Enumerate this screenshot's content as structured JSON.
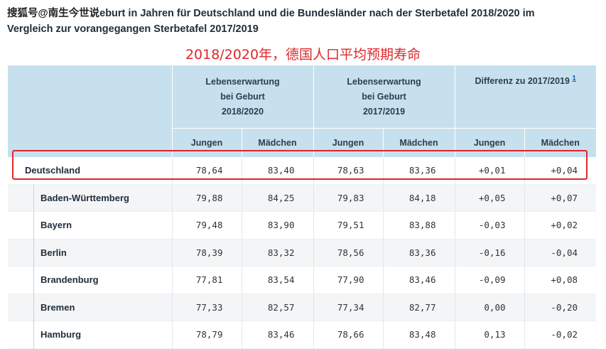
{
  "title": {
    "watermark": "搜狐号@南生今世说",
    "line1_rest": "eburt in Jahren für Deutschland und die Bundesländer nach der Sterbetafel 2018/2020 im",
    "line2": "Vergleich zur vorangegangen Sterbetafel 2017/2019"
  },
  "annotation": "2018/2020年，德国人口平均预期寿命",
  "header": {
    "group1": [
      "Lebenserwartung",
      "bei Geburt",
      "2018/2020"
    ],
    "group2": [
      "Lebenserwartung",
      "bei Geburt",
      "2017/2019"
    ],
    "group3": "Differenz zu 2017/2019",
    "footnote": "1",
    "sub": [
      "Jungen",
      "Mädchen",
      "Jungen",
      "Mädchen",
      "Jungen",
      "Mädchen"
    ]
  },
  "rows": [
    {
      "name": "Deutschland",
      "values": [
        "78,64",
        "83,40",
        "78,63",
        "83,36",
        "+0,01",
        "+0,04"
      ]
    },
    {
      "name": "Baden-Württemberg",
      "values": [
        "79,88",
        "84,25",
        "79,83",
        "84,18",
        "+0,05",
        "+0,07"
      ]
    },
    {
      "name": "Bayern",
      "values": [
        "79,48",
        "83,90",
        "79,51",
        "83,88",
        "-0,03",
        "+0,02"
      ]
    },
    {
      "name": "Berlin",
      "values": [
        "78,39",
        "83,32",
        "78,56",
        "83,36",
        "-0,16",
        "-0,04"
      ]
    },
    {
      "name": "Brandenburg",
      "values": [
        "77,81",
        "83,54",
        "77,90",
        "83,46",
        "-0,09",
        "+0,08"
      ]
    },
    {
      "name": "Bremen",
      "values": [
        "77,33",
        "82,57",
        "77,34",
        "82,77",
        "0,00",
        "-0,20"
      ]
    },
    {
      "name": "Hamburg",
      "values": [
        "78,79",
        "83,46",
        "78,66",
        "83,48",
        "0,13",
        "-0,02"
      ]
    }
  ],
  "colors": {
    "accent_red": "#e0262b",
    "header_bg": "#c7e0ee",
    "link": "#1a5ea8"
  }
}
